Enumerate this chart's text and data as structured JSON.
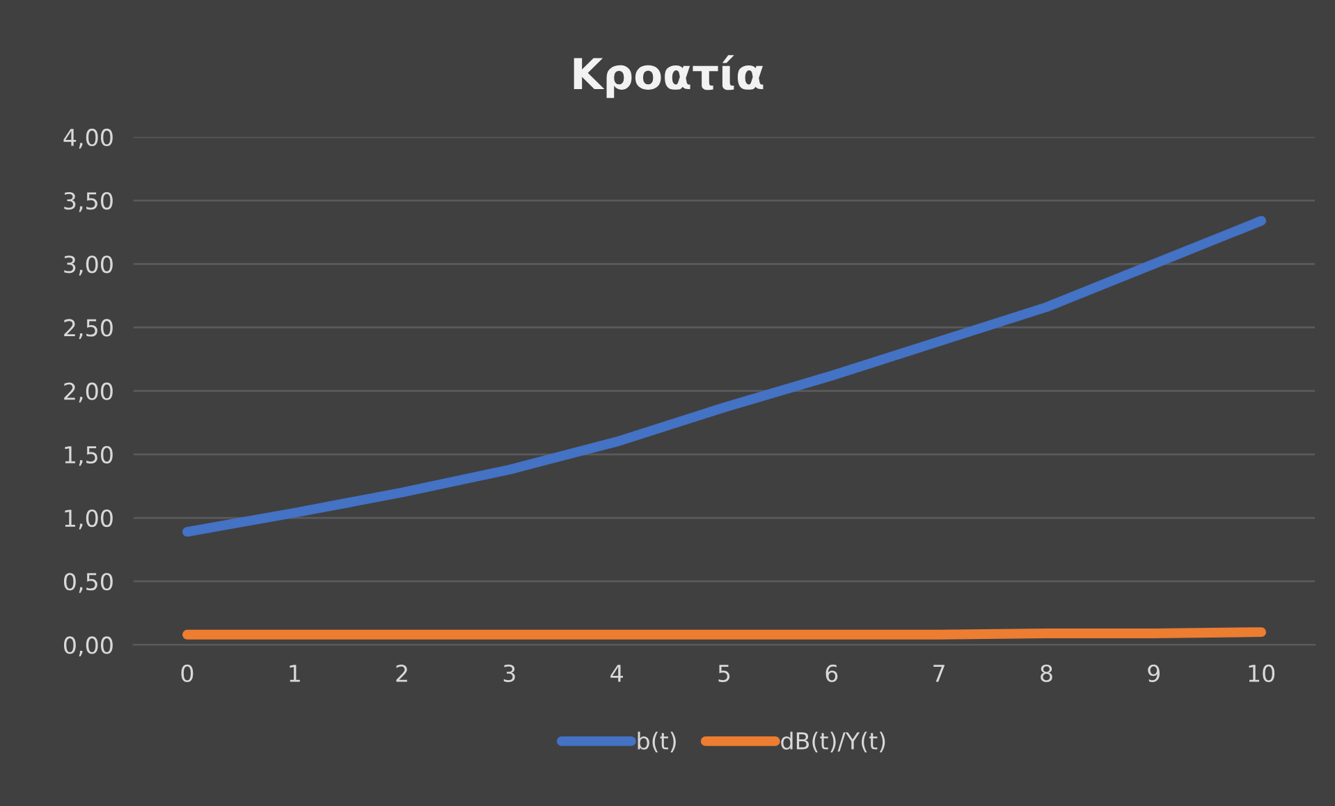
{
  "chart_data": {
    "type": "line",
    "title": "Κροατία",
    "categories": [
      "0",
      "1",
      "2",
      "3",
      "4",
      "5",
      "6",
      "7",
      "8",
      "9",
      "10"
    ],
    "series": [
      {
        "name": "b(t)",
        "color": "#4472c4",
        "values": [
          0.89,
          1.04,
          1.2,
          1.38,
          1.6,
          1.87,
          2.12,
          2.39,
          2.66,
          3.0,
          3.34
        ]
      },
      {
        "name": "dB(t)/Y(t)",
        "color": "#ed7d31",
        "values": [
          0.08,
          0.08,
          0.08,
          0.08,
          0.08,
          0.08,
          0.08,
          0.08,
          0.09,
          0.09,
          0.1
        ]
      }
    ],
    "ylim": [
      0,
      4
    ],
    "yticks": [
      {
        "value": 0,
        "label": "0,00"
      },
      {
        "value": 0.5,
        "label": "0,50"
      },
      {
        "value": 1,
        "label": "1,00"
      },
      {
        "value": 1.5,
        "label": "1,50"
      },
      {
        "value": 2,
        "label": "2,00"
      },
      {
        "value": 2.5,
        "label": "2,50"
      },
      {
        "value": 3,
        "label": "3,00"
      },
      {
        "value": 3.5,
        "label": "3,50"
      },
      {
        "value": 4,
        "label": "4,00"
      }
    ],
    "grid": "y",
    "legend": "bottom",
    "marker": "none",
    "line_style": "solid"
  }
}
